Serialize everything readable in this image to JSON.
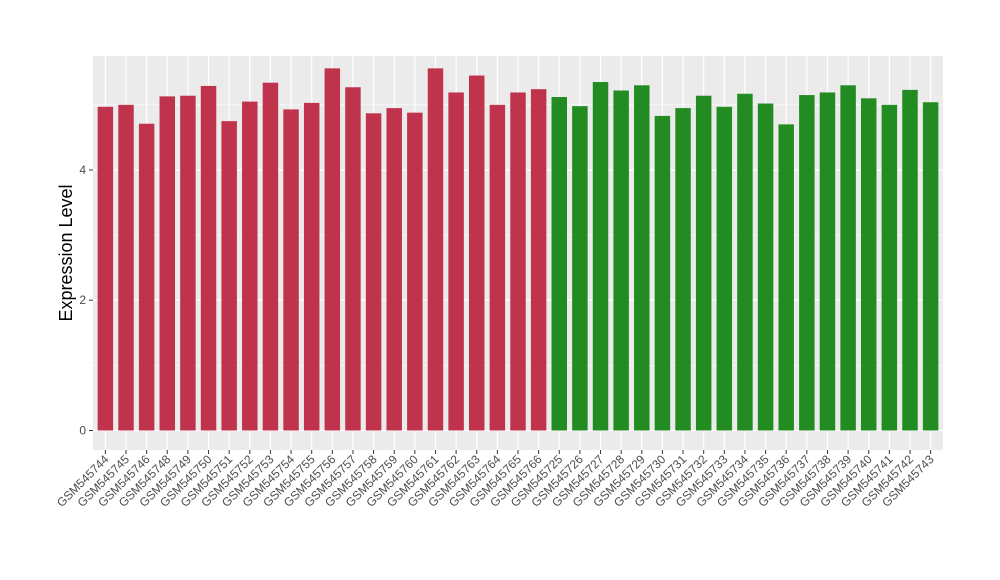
{
  "chart_data": {
    "type": "bar",
    "ylabel": "Expression Level",
    "xlabel": "",
    "ylim": [
      -0.3,
      5.75
    ],
    "yticks": [
      0,
      2,
      4
    ],
    "grid": true,
    "legend": "none",
    "colors": {
      "group1": "#c0334d",
      "group2": "#228b22",
      "panel": "#ebebeb",
      "grid": "#ffffff"
    },
    "categories": [
      "GSM545744",
      "GSM545745",
      "GSM545746",
      "GSM545748",
      "GSM545749",
      "GSM545750",
      "GSM545751",
      "GSM545752",
      "GSM545753",
      "GSM545754",
      "GSM545755",
      "GSM545756",
      "GSM545757",
      "GSM545758",
      "GSM545759",
      "GSM545760",
      "GSM545761",
      "GSM545762",
      "GSM545763",
      "GSM545764",
      "GSM545765",
      "GSM545766",
      "GSM545725",
      "GSM545726",
      "GSM545727",
      "GSM545728",
      "GSM545729",
      "GSM545730",
      "GSM545731",
      "GSM545732",
      "GSM545733",
      "GSM545734",
      "GSM545735",
      "GSM545736",
      "GSM545737",
      "GSM545738",
      "GSM545739",
      "GSM545740",
      "GSM545741",
      "GSM545742",
      "GSM545743"
    ],
    "values": [
      4.97,
      5.0,
      4.71,
      5.13,
      5.14,
      5.29,
      4.75,
      5.05,
      5.34,
      4.93,
      5.03,
      5.56,
      5.27,
      4.87,
      4.95,
      4.88,
      5.56,
      5.19,
      5.45,
      5.0,
      5.19,
      5.24,
      5.12,
      4.98,
      5.35,
      5.22,
      5.3,
      4.83,
      4.95,
      5.14,
      4.97,
      5.17,
      5.02,
      4.7,
      5.15,
      5.19,
      5.3,
      5.1,
      5.0,
      5.23,
      5.04
    ],
    "group_sizes": [
      22,
      19
    ]
  }
}
